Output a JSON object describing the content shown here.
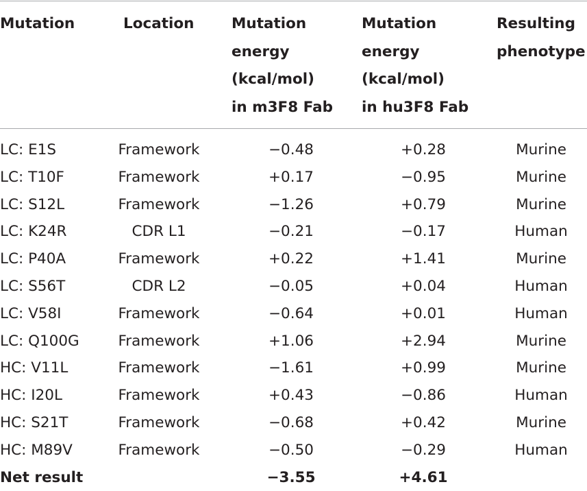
{
  "table": {
    "headers": {
      "mutation": "Mutation",
      "location": "Location",
      "m3f8": "Mutation\nenergy\n(kcal/mol)\nin m3F8 Fab",
      "hu3f8": "Mutation\nenergy\n(kcal/mol)\nin hu3F8 Fab",
      "phenotype": "Resulting\nphenotype"
    },
    "rows": [
      {
        "mutation": "LC: E1S",
        "location": "Framework",
        "m3f8": "−0.48",
        "hu3f8": "+0.28",
        "phenotype": "Murine"
      },
      {
        "mutation": "LC: T10F",
        "location": "Framework",
        "m3f8": "+0.17",
        "hu3f8": "−0.95",
        "phenotype": "Murine"
      },
      {
        "mutation": "LC: S12L",
        "location": "Framework",
        "m3f8": "−1.26",
        "hu3f8": "+0.79",
        "phenotype": "Murine"
      },
      {
        "mutation": "LC: K24R",
        "location": "CDR L1",
        "m3f8": "−0.21",
        "hu3f8": "−0.17",
        "phenotype": "Human"
      },
      {
        "mutation": "LC: P40A",
        "location": "Framework",
        "m3f8": "+0.22",
        "hu3f8": "+1.41",
        "phenotype": "Murine"
      },
      {
        "mutation": "LC: S56T",
        "location": "CDR L2",
        "m3f8": "−0.05",
        "hu3f8": "+0.04",
        "phenotype": "Human"
      },
      {
        "mutation": "LC: V58I",
        "location": "Framework",
        "m3f8": "−0.64",
        "hu3f8": "+0.01",
        "phenotype": "Human"
      },
      {
        "mutation": "LC: Q100G",
        "location": "Framework",
        "m3f8": "+1.06",
        "hu3f8": "+2.94",
        "phenotype": "Murine"
      },
      {
        "mutation": "HC: V11L",
        "location": "Framework",
        "m3f8": "−1.61",
        "hu3f8": "+0.99",
        "phenotype": "Murine"
      },
      {
        "mutation": "HC: I20L",
        "location": "Framework",
        "m3f8": "+0.43",
        "hu3f8": "−0.86",
        "phenotype": "Human"
      },
      {
        "mutation": "HC: S21T",
        "location": "Framework",
        "m3f8": "−0.68",
        "hu3f8": "+0.42",
        "phenotype": "Murine"
      },
      {
        "mutation": "HC: M89V",
        "location": "Framework",
        "m3f8": "−0.50",
        "hu3f8": "−0.29",
        "phenotype": "Human"
      }
    ],
    "net": {
      "mutation": "Net result",
      "location": "",
      "m3f8": "−3.55",
      "hu3f8": "+4.61",
      "phenotype": ""
    }
  }
}
